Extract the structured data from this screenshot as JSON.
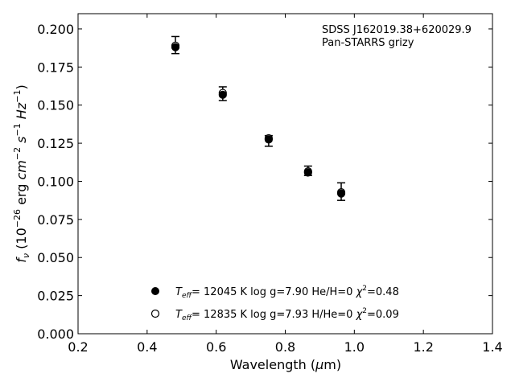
{
  "chart_data": {
    "type": "scatter",
    "annotation": [
      "SDSS J162019.38+620029.9",
      "Pan-STARRS grizy"
    ],
    "xlabel_text": "Wavelength (",
    "xlabel_unit_mu": "μ",
    "xlabel_unit_rest": "m)",
    "ylabel": {
      "f": "f",
      "nu": "ν",
      "open": " (10",
      "exp1": "−26",
      "erg": " erg ",
      "cm": "cm",
      "exp2": "−2",
      "s": " s",
      "exp3": "−1",
      "hz": " Hz",
      "exp4": "−1",
      "close": ")"
    },
    "xlim": [
      0.2,
      1.4
    ],
    "ylim": [
      0.0,
      0.21
    ],
    "x_ticks": [
      0.2,
      0.4,
      0.6,
      0.8,
      1.0,
      1.2,
      1.4
    ],
    "x_tick_labels": [
      "0.2",
      "0.4",
      "0.6",
      "0.8",
      "1.0",
      "1.2",
      "1.4"
    ],
    "y_ticks": [
      0.0,
      0.025,
      0.05,
      0.075,
      0.1,
      0.125,
      0.15,
      0.175,
      0.2
    ],
    "y_tick_labels": [
      "0.000",
      "0.025",
      "0.050",
      "0.075",
      "0.100",
      "0.125",
      "0.150",
      "0.175",
      "0.200"
    ],
    "observed": {
      "x": [
        0.482,
        0.619,
        0.752,
        0.866,
        0.962
      ],
      "y": [
        0.1893,
        0.1575,
        0.1267,
        0.1063,
        0.0932
      ],
      "yerr_low": [
        0.1838,
        0.153,
        0.123,
        0.1038,
        0.0875
      ],
      "yerr_high": [
        0.195,
        0.162,
        0.13,
        0.11,
        0.099
      ]
    },
    "series": [
      {
        "marker": "filled",
        "x": [
          0.482,
          0.619,
          0.752,
          0.866,
          0.962
        ],
        "y": [
          0.188,
          0.1568,
          0.1275,
          0.1058,
          0.092
        ],
        "label": {
          "t": "T",
          "sub": "eff",
          "rest": "= 12045 K  log g=7.90  He/H=0  ",
          "chi": "χ",
          "sup": "2",
          "val": "=0.48"
        }
      },
      {
        "marker": "open",
        "x": [
          0.482,
          0.619,
          0.752,
          0.866,
          0.962
        ],
        "y": [
          0.189,
          0.158,
          0.1282,
          0.1065,
          0.0928
        ],
        "label": {
          "t": "T",
          "sub": "eff",
          "rest": "= 12835 K  log g=7.93  H/He=0  ",
          "chi": "χ",
          "sup": "2",
          "val": "=0.09"
        }
      }
    ],
    "legend_position": "lower-left",
    "grid": false
  }
}
